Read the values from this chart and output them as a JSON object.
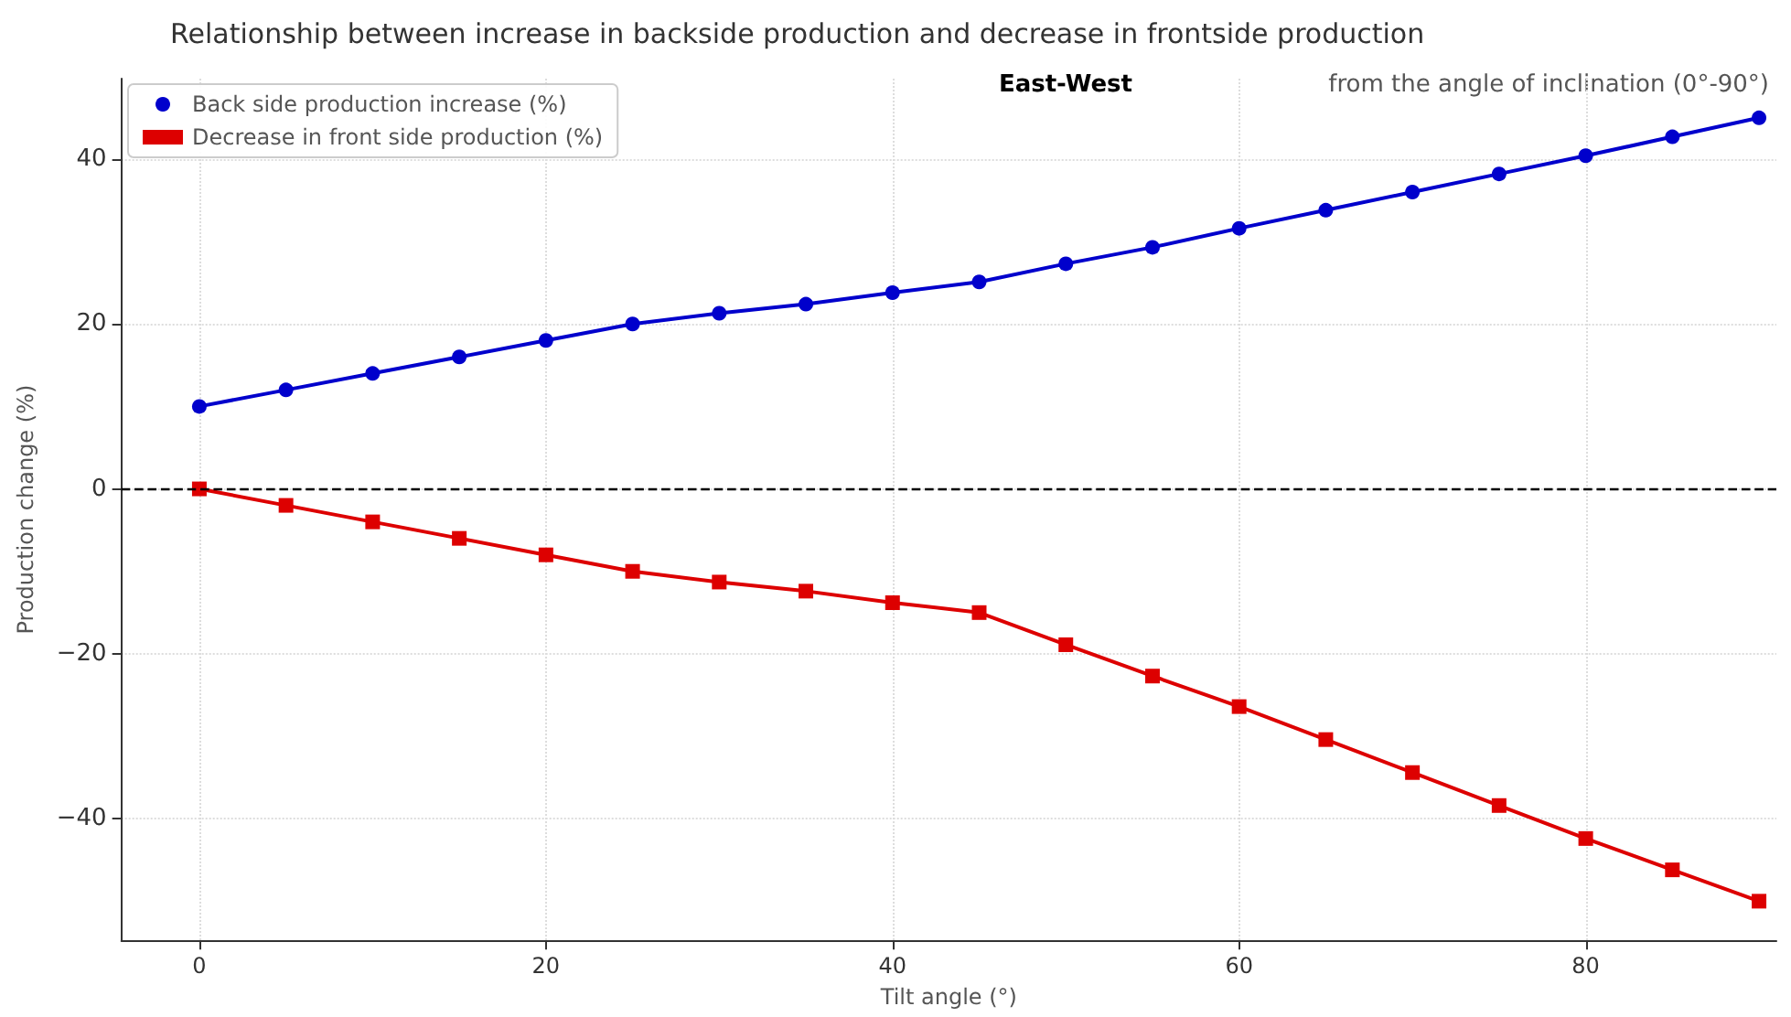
{
  "chart_data": {
    "type": "line",
    "title": "Relationship between increase in backside production and decrease in frontside production",
    "xlabel": "Tilt angle (°)",
    "ylabel": "Production change (%)",
    "annotations": [
      "East-West",
      "from the angle of inclination (0°-90°)"
    ],
    "x": [
      0,
      5,
      10,
      15,
      20,
      25,
      30,
      35,
      40,
      45,
      50,
      55,
      60,
      65,
      70,
      75,
      80,
      85,
      90
    ],
    "series": [
      {
        "name": "Back side production increase (%)",
        "color": "#0000cc",
        "marker": "circle",
        "values": [
          10,
          12,
          14,
          16,
          18,
          20,
          21.3,
          22.4,
          23.8,
          25.1,
          27.3,
          29.3,
          31.6,
          33.8,
          36,
          38.2,
          40.4,
          42.7,
          45
        ]
      },
      {
        "name": "Decrease in front side production (%)",
        "color": "#dd0000",
        "marker": "square",
        "values": [
          0,
          -2,
          -4,
          -6,
          -8,
          -10,
          -11.3,
          -12.4,
          -13.8,
          -15,
          -18.9,
          -22.7,
          -26.4,
          -30.4,
          -34.4,
          -38.4,
          -42.4,
          -46.2,
          -50
        ]
      }
    ],
    "xlim": [
      -4.5,
      91
    ],
    "xticks": [
      0,
      20,
      40,
      60,
      80
    ],
    "ylim": [
      -54.75,
      49.75
    ],
    "yticks": [
      -40,
      -20,
      0,
      20,
      40
    ],
    "ref_lines": [
      {
        "axis": "y",
        "value": 0,
        "color": "#000000",
        "line_style": "dashed"
      }
    ],
    "grid": true,
    "legend": "top left",
    "line_style": "solid"
  }
}
